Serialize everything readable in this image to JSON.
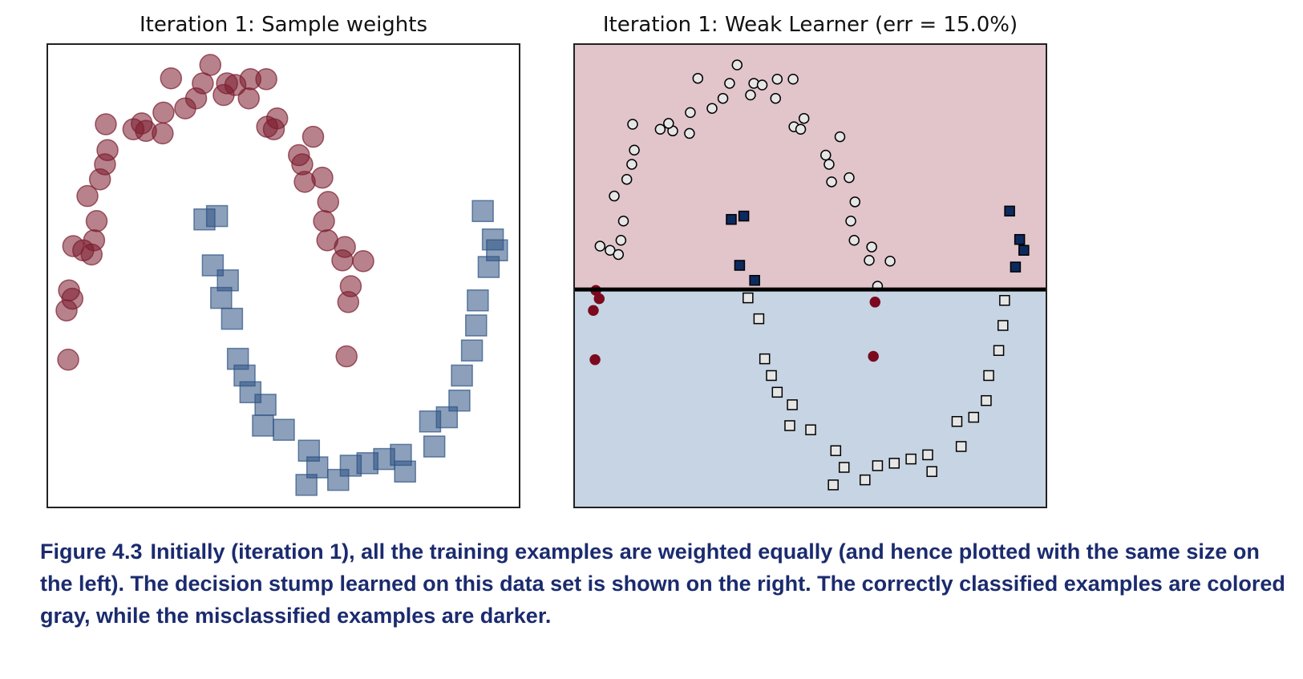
{
  "chart_data": [
    {
      "type": "scatter",
      "title": "Iteration 1: Sample weights",
      "xlim": [
        0,
        565
      ],
      "ylim": [
        0,
        555
      ],
      "series": [
        {
          "marker": "circle",
          "color": "#7b1c2e",
          "x": [
            25,
            23,
            30,
            26,
            31,
            43,
            53,
            56,
            59,
            48,
            63,
            69,
            72,
            70,
            103,
            118,
            138,
            113,
            139,
            165,
            178,
            186,
            148,
            195,
            211,
            215,
            225,
            243,
            262,
            241,
            275,
            263,
            271,
            318,
            301,
            305,
            308,
            329,
            336,
            331,
            335,
            356,
            353,
            378,
            363,
            360,
            358
          ],
          "y": [
            177,
            236,
            250,
            260,
            313,
            308,
            303,
            320,
            343,
            373,
            393,
            411,
            428,
            459,
            453,
            451,
            448,
            460,
            473,
            478,
            490,
            508,
            514,
            530,
            494,
            508,
            506,
            513,
            513,
            490,
            466,
            456,
            453,
            444,
            422,
            411,
            390,
            395,
            366,
            343,
            320,
            312,
            296,
            295,
            265,
            246,
            181
          ]
        },
        {
          "marker": "square",
          "color": "#2e5283",
          "x": [
            188,
            203,
            198,
            216,
            208,
            221,
            228,
            236,
            243,
            261,
            283,
            258,
            313,
            310,
            323,
            348,
            363,
            383,
            403,
            423,
            428,
            458,
            463,
            478,
            493,
            496,
            508,
            513,
            515,
            528,
            533,
            538,
            521
          ],
          "y": [
            345,
            349,
            290,
            272,
            251,
            226,
            178,
            158,
            138,
            123,
            93,
            98,
            68,
            27,
            48,
            33,
            50,
            53,
            58,
            63,
            43,
            103,
            73,
            108,
            128,
            158,
            188,
            218,
            248,
            288,
            321,
            308,
            355
          ]
        }
      ]
    },
    {
      "type": "stump",
      "title": "Iteration 1: Weak Learner (err = 15.0%)",
      "xlim": [
        0,
        565
      ],
      "ylim": [
        0,
        555
      ],
      "threshold": 261,
      "above_color": "#e2c4cb",
      "below_color": "#c6d4e3",
      "correct_color": "#e6e6e6",
      "series": [
        {
          "marker": "circle",
          "color": "#7b0a1f",
          "x": [
            25,
            23,
            30,
            26,
            31,
            43,
            53,
            56,
            59,
            48,
            63,
            69,
            72,
            70,
            103,
            118,
            138,
            113,
            139,
            165,
            178,
            186,
            148,
            195,
            211,
            215,
            225,
            243,
            262,
            241,
            275,
            263,
            271,
            318,
            301,
            305,
            308,
            329,
            336,
            331,
            335,
            356,
            353,
            378,
            363,
            360,
            358
          ],
          "y": [
            177,
            236,
            250,
            260,
            313,
            308,
            303,
            320,
            343,
            373,
            393,
            411,
            428,
            459,
            453,
            451,
            448,
            460,
            473,
            478,
            490,
            508,
            514,
            530,
            494,
            508,
            506,
            513,
            513,
            490,
            466,
            456,
            453,
            444,
            422,
            411,
            390,
            395,
            366,
            343,
            320,
            312,
            296,
            295,
            265,
            246,
            181
          ]
        },
        {
          "marker": "square",
          "color": "#0c2a5e",
          "x": [
            188,
            203,
            198,
            216,
            208,
            221,
            228,
            236,
            243,
            261,
            283,
            258,
            313,
            310,
            323,
            348,
            363,
            383,
            403,
            423,
            428,
            458,
            463,
            478,
            493,
            496,
            508,
            513,
            515,
            528,
            533,
            538,
            521
          ],
          "y": [
            345,
            349,
            290,
            272,
            251,
            226,
            178,
            158,
            138,
            123,
            93,
            98,
            68,
            27,
            48,
            33,
            50,
            53,
            58,
            63,
            43,
            103,
            73,
            108,
            128,
            158,
            188,
            218,
            248,
            288,
            321,
            308,
            355
          ]
        }
      ]
    }
  ],
  "caption": {
    "label": "Figure 4.3",
    "text": "Initially (iteration 1), all the training examples are weighted equally (and hence plotted with the same size on the left). The decision stump learned on this data set is shown on the right. The correctly classified examples are colored gray, while the misclassified examples are darker."
  }
}
